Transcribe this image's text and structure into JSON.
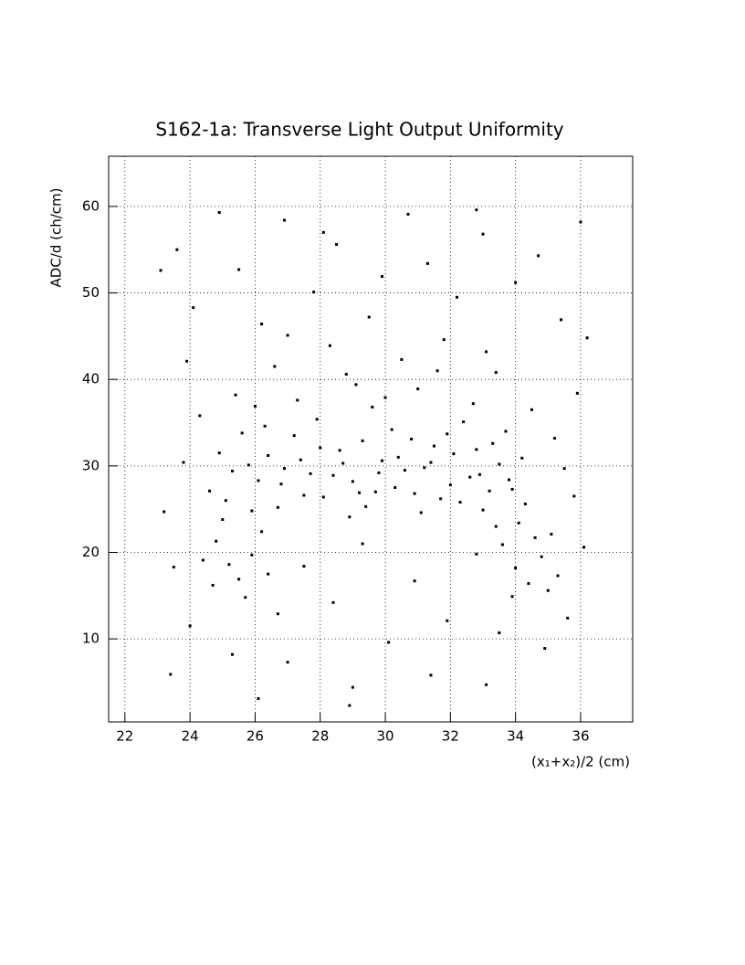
{
  "chart_data": {
    "type": "scatter",
    "title": "S162-1a: Transverse Light Output Uniformity",
    "x_label": "(x₁+x₂)/2 (cm)",
    "y_label": "ADC/d (ch/cm)",
    "color": "#000000",
    "grid": true,
    "xlim": [
      21.5,
      37.6
    ],
    "ylim": [
      0.4,
      65.8
    ],
    "xticks": [
      22,
      24,
      26,
      28,
      30,
      32,
      34,
      36
    ],
    "yticks": [
      10,
      20,
      30,
      40,
      50,
      60
    ],
    "x": [
      24.6,
      25.3,
      25.9,
      26.4,
      26.8,
      27.2,
      27.7,
      28.1,
      28.6,
      29.0,
      29.4,
      29.9,
      30.3,
      30.8,
      31.2,
      31.7,
      32.1,
      32.6,
      33.0,
      33.5,
      33.9,
      34.3,
      24.9,
      25.6,
      26.1,
      26.7,
      27.4,
      27.9,
      28.4,
      28.9,
      29.3,
      29.7,
      30.2,
      30.6,
      31.1,
      31.5,
      32.0,
      32.4,
      32.9,
      33.3,
      33.8,
      34.2,
      25.1,
      25.8,
      26.3,
      26.9,
      27.5,
      28.0,
      28.7,
      29.2,
      29.8,
      30.4,
      30.9,
      31.4,
      31.9,
      32.3,
      32.8,
      33.2,
      33.7,
      34.1,
      24.8,
      25.2,
      25.5,
      25.9,
      26.2,
      25.0,
      24.4,
      25.7,
      26.4,
      24.7,
      33.6,
      34.0,
      34.4,
      34.8,
      35.1,
      33.9,
      35.3,
      34.6,
      33.4,
      35.0,
      25.4,
      26.6,
      27.3,
      28.3,
      29.1,
      29.6,
      30.5,
      31.0,
      31.8,
      32.7,
      33.4,
      34.5,
      24.3,
      35.2,
      28.8,
      27.0,
      30.0,
      33.1,
      26.0,
      31.6,
      24.1,
      25.5,
      26.9,
      27.8,
      28.5,
      29.5,
      30.7,
      31.3,
      32.2,
      33.0,
      34.0,
      35.4,
      23.6,
      36.0,
      26.2,
      29.9,
      32.8,
      24.9,
      28.1,
      34.7,
      27.5,
      28.4,
      29.3,
      30.1,
      30.9,
      31.9,
      32.8,
      27.0,
      29.0,
      31.4,
      24.0,
      25.3,
      26.7,
      33.5,
      34.9,
      35.6,
      23.4,
      26.1,
      33.1,
      28.9,
      23.2,
      23.5,
      23.8,
      35.8,
      35.5,
      36.1,
      23.9,
      35.9,
      23.1,
      36.2
    ],
    "y": [
      27.1,
      29.4,
      24.8,
      31.2,
      27.9,
      33.5,
      29.1,
      26.4,
      31.8,
      28.2,
      25.3,
      30.6,
      27.5,
      33.1,
      29.8,
      26.2,
      31.4,
      28.7,
      24.9,
      30.2,
      27.3,
      25.6,
      31.5,
      33.8,
      28.3,
      25.2,
      30.7,
      35.4,
      28.9,
      24.1,
      32.9,
      27.0,
      34.2,
      29.5,
      24.6,
      32.3,
      27.8,
      35.1,
      29.0,
      32.6,
      28.4,
      30.9,
      26.0,
      30.1,
      34.6,
      29.7,
      26.6,
      32.1,
      30.3,
      26.9,
      29.2,
      31.0,
      26.8,
      30.4,
      33.7,
      25.8,
      31.9,
      27.1,
      34.0,
      23.4,
      21.3,
      18.6,
      16.9,
      19.7,
      22.4,
      23.8,
      19.1,
      14.8,
      17.5,
      16.2,
      20.9,
      18.2,
      16.4,
      19.5,
      22.1,
      14.9,
      17.3,
      21.7,
      23.0,
      15.6,
      38.2,
      41.5,
      37.6,
      43.9,
      39.4,
      36.8,
      42.3,
      38.9,
      44.6,
      37.2,
      40.8,
      36.5,
      35.8,
      33.2,
      40.6,
      45.1,
      37.9,
      43.2,
      36.9,
      41.0,
      48.3,
      52.7,
      58.4,
      50.1,
      55.6,
      47.2,
      59.1,
      53.4,
      49.5,
      56.8,
      51.2,
      46.9,
      55.0,
      58.2,
      46.4,
      51.9,
      59.6,
      59.3,
      57.0,
      54.3,
      18.4,
      14.2,
      21.0,
      9.6,
      16.7,
      12.1,
      19.8,
      7.3,
      4.4,
      5.8,
      11.5,
      8.2,
      12.9,
      10.7,
      8.9,
      12.4,
      5.9,
      3.1,
      4.7,
      2.3,
      24.7,
      18.3,
      30.4,
      26.5,
      29.7,
      20.6,
      42.1,
      38.4,
      52.6,
      44.8
    ]
  }
}
